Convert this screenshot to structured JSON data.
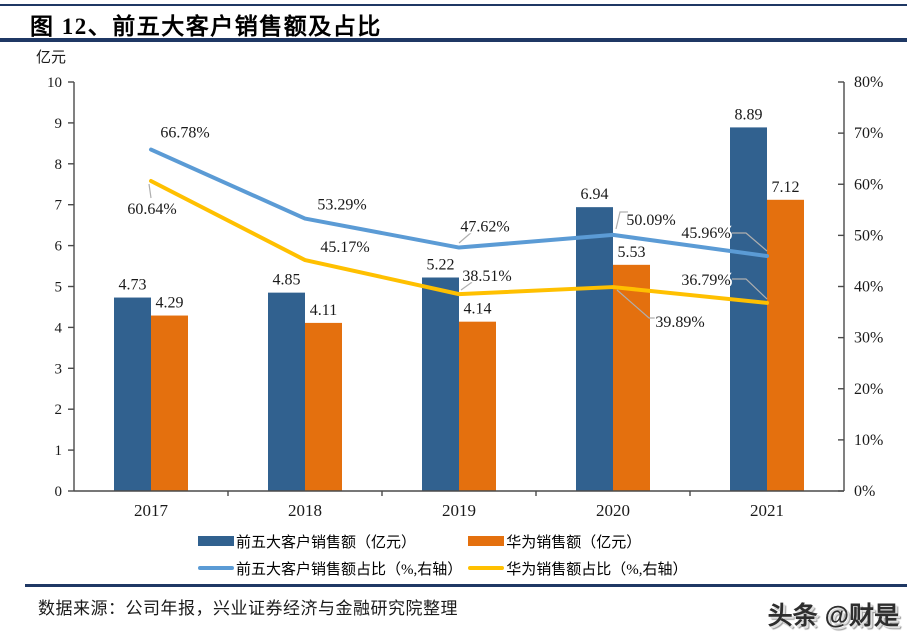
{
  "header": {
    "title": "图 12、前五大客户销售额及占比"
  },
  "colors": {
    "rule_navy": "#1F3864",
    "bar_blue": "#31618F",
    "bar_orange": "#E4700E",
    "line_blue": "#5B9BD5",
    "line_yellow": "#FFC000",
    "axis_gray": "#4A4A4A",
    "leader_gray": "#AFAFAF"
  },
  "chart_data": {
    "type": "bar",
    "subtype": "bar-line-combo-dual-axis",
    "unit_label": "亿元",
    "categories": [
      "2017",
      "2018",
      "2019",
      "2020",
      "2021"
    ],
    "bar_series": [
      {
        "name": "前五大客户销售额（亿元）",
        "color": "#31618F",
        "axis": "left",
        "values": [
          4.73,
          4.85,
          5.22,
          6.94,
          8.89
        ],
        "labels": [
          "4.73",
          "4.85",
          "5.22",
          "6.94",
          "8.89"
        ]
      },
      {
        "name": "华为销售额（亿元）",
        "color": "#E4700E",
        "axis": "left",
        "values": [
          4.29,
          4.11,
          4.14,
          5.53,
          7.12
        ],
        "labels": [
          "4.29",
          "4.11",
          "4.14",
          "5.53",
          "7.12"
        ]
      }
    ],
    "line_series": [
      {
        "name": "前五大客户销售额占比（%,右轴）",
        "color": "#5B9BD5",
        "axis": "right",
        "values": [
          66.78,
          53.29,
          47.62,
          50.09,
          45.96
        ],
        "labels": [
          "66.78%",
          "53.29%",
          "47.62%",
          "50.09%",
          "45.96%"
        ]
      },
      {
        "name": "华为销售额占比（%,右轴）",
        "color": "#FFC000",
        "axis": "right",
        "values": [
          60.64,
          45.17,
          38.51,
          39.89,
          36.79
        ],
        "labels": [
          "60.64%",
          "45.17%",
          "38.51%",
          "39.89%",
          "36.79%"
        ]
      }
    ],
    "left_axis": {
      "min": 0,
      "max": 10,
      "step": 1,
      "tick_labels": [
        "0",
        "1",
        "2",
        "3",
        "4",
        "5",
        "6",
        "7",
        "8",
        "9",
        "10"
      ]
    },
    "right_axis": {
      "min": 0,
      "max": 80,
      "step": 10,
      "tick_labels": [
        "0%",
        "10%",
        "20%",
        "30%",
        "40%",
        "50%",
        "60%",
        "70%",
        "80%"
      ]
    },
    "grid": false,
    "legend_position": "bottom"
  },
  "footer": {
    "source": "数据来源：公司年报，兴业证券经济与金融研究院整理",
    "watermark": "头条 @财是"
  }
}
